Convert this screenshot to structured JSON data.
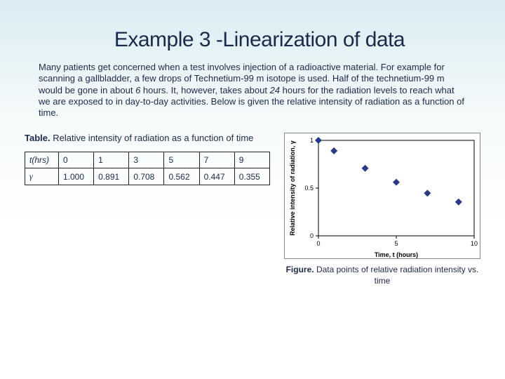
{
  "title": "Example 3 -Linearization of data",
  "title_fontsize": 30,
  "title_color": "#1a2a4a",
  "body_text": {
    "pre": "Many patients get concerned when a test involves injection of a radioactive material. For example for scanning a gallbladder, a few drops of Technetium-99 m isotope is used.  Half of the technetium-99 m would be gone in about ",
    "em1": "6",
    "mid": " hours.  It, however, takes about ",
    "em2": "24",
    "post": " hours for the radiation levels to reach what we are exposed to in day-to-day activities.  Below is given the relative intensity of radiation as a function of time.",
    "fontsize": 13
  },
  "table_caption": {
    "bold": "Table.",
    "rest": " Relative intensity of radiation as a function of time",
    "fontsize": 13
  },
  "table": {
    "row1_head": "t(hrs)",
    "row1": [
      "0",
      "1",
      "3",
      "5",
      "7",
      "9"
    ],
    "row2_head": "γ",
    "row2": [
      "1.000",
      "0.891",
      "0.708",
      "0.562",
      "0.447",
      "0.355"
    ]
  },
  "chart": {
    "type": "scatter",
    "x": [
      0,
      1,
      3,
      5,
      7,
      9
    ],
    "y": [
      1.0,
      0.891,
      0.708,
      0.562,
      0.447,
      0.355
    ],
    "marker_color": "#2a3a8a",
    "marker_size": 5,
    "xlim": [
      0,
      10
    ],
    "ylim": [
      0,
      1
    ],
    "xticks": [
      0,
      5,
      10
    ],
    "yticks": [
      0,
      0.5,
      1
    ],
    "xlabel": "Time, t (hours)",
    "ylabel": "Relative intensity of radiation, γ",
    "axis_fontsize": 9,
    "tick_fontsize": 9,
    "axis_font_weight": "bold",
    "plot_bg": "#ffffff",
    "axis_color": "#000000"
  },
  "figure_caption": {
    "bold": "Figure.",
    "rest": " Data points of relative radiation intensity vs. time",
    "fontsize": 12
  }
}
